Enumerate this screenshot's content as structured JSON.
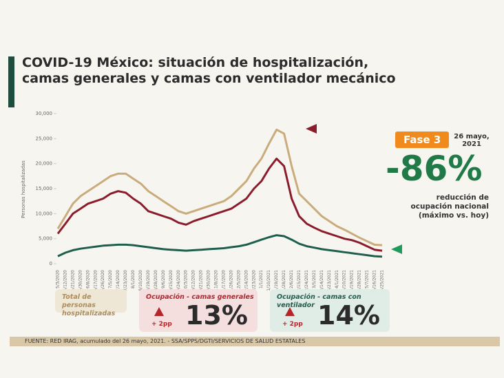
{
  "title": "COVID-19 México: situación de hospitalización, camas generales y camas con ventilador mecánico",
  "panel": {
    "phase": "Fase 3",
    "date": "26 mayo, 2021",
    "reduction": "-86%",
    "reduction_text": "reducción de ocupación nacional (máximo vs. hoy)"
  },
  "cards": [
    {
      "label": "Total de personas hospitalizadas"
    },
    {
      "label": "Ocupación - camas generales",
      "change": "+ 2pp",
      "value": "13%"
    },
    {
      "label": "Ocupación - camas con ventilador",
      "change": "+ 2pp",
      "value": "14%"
    }
  ],
  "footer": "FUENTE: RED IRAG, acumulado del 26 mayo, 2021. -  SSA/SPPS/DGTI/SERVICIOS DE SALUD ESTATALES",
  "chart_data": {
    "type": "line",
    "y_label": "Personas hospitalizadas",
    "categories": [
      "5/3/2020",
      "5/12/2020",
      "5/21/2020",
      "5/30/2020",
      "6/8/2020",
      "6/17/2020",
      "6/26/2020",
      "7/5/2020",
      "7/14/2020",
      "7/23/2020",
      "8/1/2020",
      "8/10/2020",
      "8/19/2020",
      "8/28/2020",
      "9/6/2020",
      "9/15/2020",
      "9/24/2020",
      "10/3/2020",
      "10/12/2020",
      "10/21/2020",
      "10/30/2020",
      "11/8/2020",
      "11/17/2020",
      "11/26/2020",
      "12/5/2020",
      "12/14/2020",
      "12/23/2020",
      "1/1/2021",
      "1/10/2021",
      "1/19/2021",
      "1/28/2021",
      "2/6/2021",
      "2/15/2021",
      "2/24/2021",
      "3/5/2021",
      "3/14/2021",
      "3/23/2021",
      "4/1/2021",
      "4/10/2021",
      "4/19/2021",
      "4/28/2021",
      "5/7/2021",
      "5/16/2021",
      "5/25/2021"
    ],
    "series": [
      {
        "color": "#c9ab7c",
        "values": [
          7000,
          9500,
          12000,
          13500,
          14500,
          15500,
          16500,
          17500,
          18000,
          18000,
          17000,
          16000,
          14500,
          13500,
          12500,
          11500,
          10500,
          10000,
          10500,
          11000,
          11500,
          12000,
          12500,
          13500,
          15000,
          16500,
          19000,
          21000,
          24000,
          26800,
          26000,
          19500,
          14000,
          12500,
          11000,
          9500,
          8500,
          7500,
          6800,
          6000,
          5200,
          4500,
          3800,
          3700
        ]
      },
      {
        "color": "#8b1c2c",
        "values": [
          6000,
          8000,
          10000,
          11000,
          12000,
          12500,
          13000,
          14000,
          14500,
          14200,
          13000,
          12000,
          10500,
          10000,
          9500,
          9000,
          8200,
          7800,
          8500,
          9000,
          9500,
          10000,
          10500,
          11000,
          12000,
          13000,
          15000,
          16500,
          19000,
          21000,
          19500,
          13000,
          9500,
          8000,
          7200,
          6500,
          6000,
          5500,
          5000,
          4700,
          4200,
          3500,
          2800,
          2600
        ]
      },
      {
        "color": "#1e5e4e",
        "values": [
          1500,
          2200,
          2700,
          3000,
          3200,
          3400,
          3600,
          3700,
          3800,
          3800,
          3700,
          3500,
          3300,
          3100,
          2900,
          2800,
          2700,
          2600,
          2700,
          2800,
          2900,
          3000,
          3100,
          3300,
          3500,
          3800,
          4300,
          4800,
          5300,
          5700,
          5500,
          4800,
          4000,
          3500,
          3200,
          2900,
          2700,
          2500,
          2300,
          2100,
          1900,
          1700,
          1500,
          1400
        ]
      }
    ],
    "ylim": [
      0,
      30000
    ],
    "yticks": [
      0,
      {
        "value": 5000,
        "label": "5,000"
      },
      {
        "value": 10000,
        "label": "10,000"
      },
      {
        "value": 15000,
        "label": "15,000"
      },
      {
        "value": 20000,
        "label": "20,000"
      },
      {
        "value": 25000,
        "label": "25,000"
      },
      {
        "value": 30000,
        "label": "30,000"
      }
    ],
    "grid": false
  }
}
